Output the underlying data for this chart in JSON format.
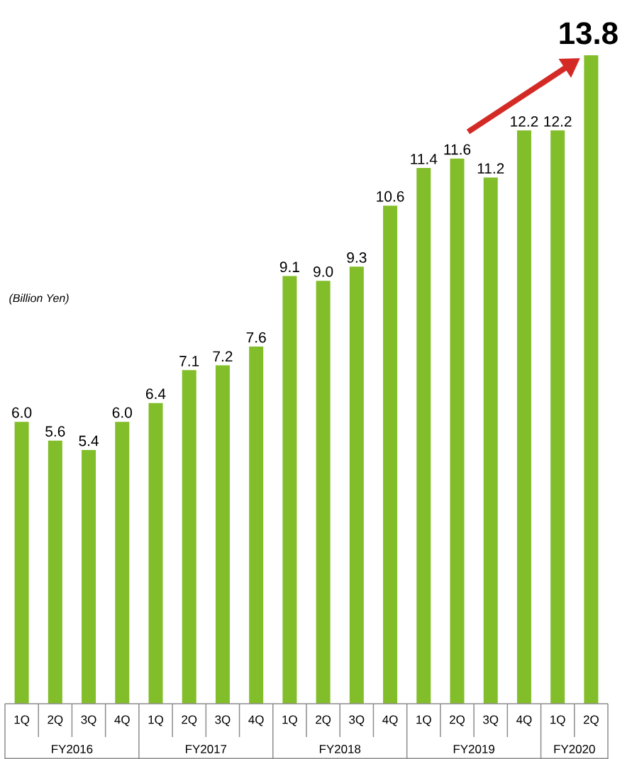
{
  "chart_data": {
    "type": "bar",
    "ylabel": "(Billion Yen)",
    "categories": [
      "1Q",
      "2Q",
      "3Q",
      "4Q",
      "1Q",
      "2Q",
      "3Q",
      "4Q",
      "1Q",
      "2Q",
      "3Q",
      "4Q",
      "1Q",
      "2Q",
      "3Q",
      "4Q",
      "1Q",
      "2Q"
    ],
    "values": [
      6.0,
      5.6,
      5.4,
      6.0,
      6.4,
      7.1,
      7.2,
      7.6,
      9.1,
      9.0,
      9.3,
      10.6,
      11.4,
      11.6,
      11.2,
      12.2,
      12.2,
      13.8
    ],
    "color": "#82bd2a",
    "value_labels": [
      "6.0",
      "5.6",
      "5.4",
      "6.0",
      "6.4",
      "7.1",
      "7.2",
      "7.6",
      "9.1",
      "9.0",
      "9.3",
      "10.6",
      "11.4",
      "11.6",
      "11.2",
      "12.2",
      "12.2",
      "13.8"
    ],
    "annotations": [
      "FY2016",
      "FY2017",
      "FY2018",
      "FY2019",
      "FY2020"
    ]
  }
}
